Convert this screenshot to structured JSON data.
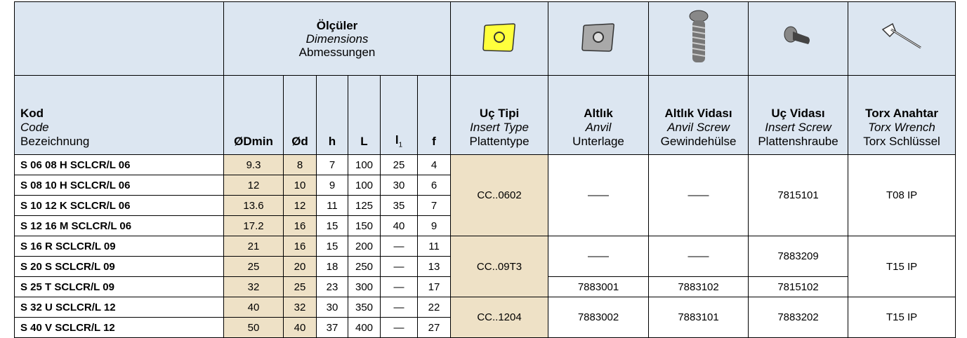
{
  "dimensions_header": [
    "Ölçüler",
    "Dimensions",
    "Abmessungen"
  ],
  "columns": {
    "code": [
      "Kod",
      "Code",
      "Bezeichnung"
    ],
    "d_min": "ØDmin",
    "d": "Ød",
    "h": "h",
    "L": "L",
    "l1": {
      "text": "l",
      "sub": "1"
    },
    "f": "f",
    "insert_type": [
      "Uç Tipi",
      "Insert Type",
      "Plattentype"
    ],
    "anvil": [
      "Altlık",
      "Anvil",
      "Unterlage"
    ],
    "anvil_screw": [
      "Altlık Vidası",
      "Anvil Screw",
      "Gewindehülse"
    ],
    "insert_screw": [
      "Uç Vidası",
      "Insert Screw",
      "Plattenshraube"
    ],
    "torx_wrench": [
      "Torx Anahtar",
      "Torx Wrench",
      "Torx Schlüssel"
    ]
  },
  "groups": [
    {
      "items": [
        {
          "code": "S 06 08 H SCLCR/L 06",
          "d_min": 9.3,
          "d": 8,
          "h": 7,
          "L": 100,
          "l1": 25,
          "f": 4
        },
        {
          "code": "S 08 10 H SCLCR/L 06",
          "d_min": 12,
          "d": 10,
          "h": 9,
          "L": 100,
          "l1": 30,
          "f": 6
        },
        {
          "code": "S 10 12 K SCLCR/L 06",
          "d_min": 13.6,
          "d": 12,
          "h": 11,
          "L": 125,
          "l1": 35,
          "f": 7
        },
        {
          "code": "S 12 16 M SCLCR/L 06",
          "d_min": 17.2,
          "d": 16,
          "h": 15,
          "L": 150,
          "l1": 40,
          "f": 9
        }
      ],
      "insert_type": "CC..0602",
      "anvil": [
        "——"
      ],
      "anvil_screw": [
        "——"
      ],
      "insert_screw": [
        "7815101"
      ],
      "torx_wrench": "T08 IP"
    },
    {
      "items": [
        {
          "code": "S 16 R SCLCR/L 09",
          "d_min": 21,
          "d": 16,
          "h": 15,
          "L": 200,
          "l1": "—",
          "f": 11
        },
        {
          "code": "S 20 S SCLCR/L 09",
          "d_min": 25,
          "d": 20,
          "h": 18,
          "L": 250,
          "l1": "—",
          "f": 13
        },
        {
          "code": "S 25 T SCLCR/L 09",
          "d_min": 32,
          "d": 25,
          "h": 23,
          "L": 300,
          "l1": "—",
          "f": 17
        }
      ],
      "insert_type": "CC..09T3",
      "anvil": [
        "——",
        "7883001"
      ],
      "anvil_screw": [
        "——",
        "7883102"
      ],
      "insert_screw": [
        "7883209",
        "7815102"
      ],
      "torx_wrench": "T15 IP"
    },
    {
      "items": [
        {
          "code": "S 32 U SCLCR/L 12",
          "d_min": 40,
          "d": 32,
          "h": 30,
          "L": 350,
          "l1": "—",
          "f": 22
        },
        {
          "code": "S 40 V SCLCR/L 12",
          "d_min": 50,
          "d": 40,
          "h": 37,
          "L": 400,
          "l1": "—",
          "f": 27
        }
      ],
      "insert_type": "CC..1204",
      "anvil": [
        "7883002"
      ],
      "anvil_screw": [
        "7883101"
      ],
      "insert_screw": [
        "7883202"
      ],
      "torx_wrench": "T15 IP"
    }
  ]
}
